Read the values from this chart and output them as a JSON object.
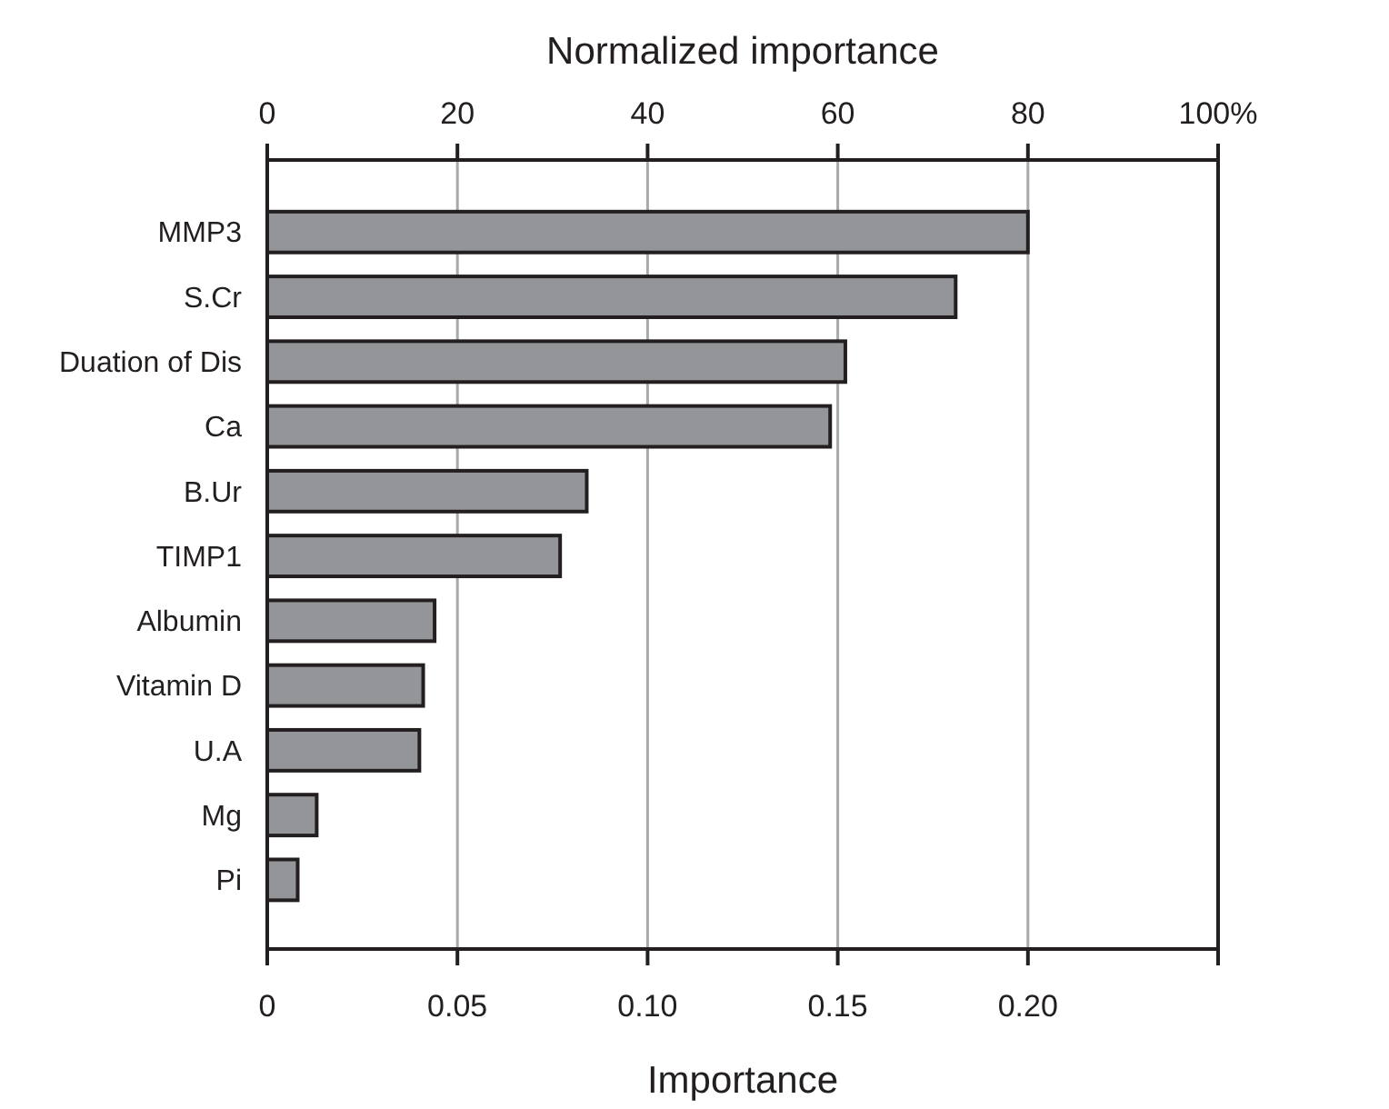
{
  "chart_data": {
    "type": "bar",
    "orientation": "horizontal",
    "xlabel": "Importance",
    "x2label": "Normalized importance",
    "categories": [
      "MMP3",
      "S.Cr",
      "Duation of Dis",
      "Ca",
      "B.Ur",
      "TIMP1",
      "Albumin",
      "Vitamin D",
      "U.A",
      "Mg",
      "Pi"
    ],
    "values": [
      0.2,
      0.181,
      0.152,
      0.148,
      0.084,
      0.077,
      0.044,
      0.041,
      0.04,
      0.013,
      0.008
    ],
    "color": "#939598",
    "xlim": [
      0,
      0.25
    ],
    "xticks": [
      0,
      {
        "value": 0.05,
        "label": "0.05"
      },
      {
        "value": 0.1,
        "label": "0.10"
      },
      {
        "value": 0.15,
        "label": "0.15"
      },
      {
        "value": 0.2,
        "label": "0.20"
      },
      {
        "value": 0.25,
        "label": null
      }
    ],
    "x2lim": [
      0,
      100
    ],
    "x2ticks": [
      0,
      20,
      40,
      60,
      80,
      {
        "value": 100,
        "label": "100%"
      }
    ],
    "grid": "x"
  }
}
